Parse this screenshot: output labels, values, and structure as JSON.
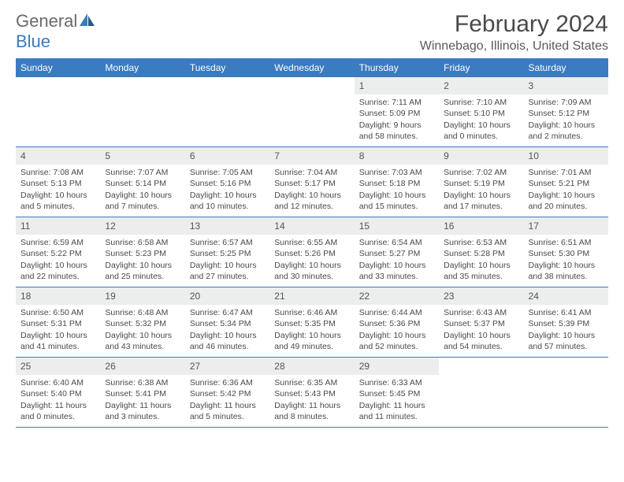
{
  "logo": {
    "text1": "General",
    "text2": "Blue"
  },
  "title": "February 2024",
  "location": "Winnebago, Illinois, United States",
  "colors": {
    "accent": "#3b7bbf",
    "dayhead_text": "#ffffff",
    "daynum_bg": "#eceded",
    "text": "#4a4a4a",
    "logo_gray": "#6a6a6a"
  },
  "day_headers": [
    "Sunday",
    "Monday",
    "Tuesday",
    "Wednesday",
    "Thursday",
    "Friday",
    "Saturday"
  ],
  "weeks": [
    [
      {
        "empty": true
      },
      {
        "empty": true
      },
      {
        "empty": true
      },
      {
        "empty": true
      },
      {
        "day": "1",
        "sunrise": "Sunrise: 7:11 AM",
        "sunset": "Sunset: 5:09 PM",
        "daylight": "Daylight: 9 hours and 58 minutes."
      },
      {
        "day": "2",
        "sunrise": "Sunrise: 7:10 AM",
        "sunset": "Sunset: 5:10 PM",
        "daylight": "Daylight: 10 hours and 0 minutes."
      },
      {
        "day": "3",
        "sunrise": "Sunrise: 7:09 AM",
        "sunset": "Sunset: 5:12 PM",
        "daylight": "Daylight: 10 hours and 2 minutes."
      }
    ],
    [
      {
        "day": "4",
        "sunrise": "Sunrise: 7:08 AM",
        "sunset": "Sunset: 5:13 PM",
        "daylight": "Daylight: 10 hours and 5 minutes."
      },
      {
        "day": "5",
        "sunrise": "Sunrise: 7:07 AM",
        "sunset": "Sunset: 5:14 PM",
        "daylight": "Daylight: 10 hours and 7 minutes."
      },
      {
        "day": "6",
        "sunrise": "Sunrise: 7:05 AM",
        "sunset": "Sunset: 5:16 PM",
        "daylight": "Daylight: 10 hours and 10 minutes."
      },
      {
        "day": "7",
        "sunrise": "Sunrise: 7:04 AM",
        "sunset": "Sunset: 5:17 PM",
        "daylight": "Daylight: 10 hours and 12 minutes."
      },
      {
        "day": "8",
        "sunrise": "Sunrise: 7:03 AM",
        "sunset": "Sunset: 5:18 PM",
        "daylight": "Daylight: 10 hours and 15 minutes."
      },
      {
        "day": "9",
        "sunrise": "Sunrise: 7:02 AM",
        "sunset": "Sunset: 5:19 PM",
        "daylight": "Daylight: 10 hours and 17 minutes."
      },
      {
        "day": "10",
        "sunrise": "Sunrise: 7:01 AM",
        "sunset": "Sunset: 5:21 PM",
        "daylight": "Daylight: 10 hours and 20 minutes."
      }
    ],
    [
      {
        "day": "11",
        "sunrise": "Sunrise: 6:59 AM",
        "sunset": "Sunset: 5:22 PM",
        "daylight": "Daylight: 10 hours and 22 minutes."
      },
      {
        "day": "12",
        "sunrise": "Sunrise: 6:58 AM",
        "sunset": "Sunset: 5:23 PM",
        "daylight": "Daylight: 10 hours and 25 minutes."
      },
      {
        "day": "13",
        "sunrise": "Sunrise: 6:57 AM",
        "sunset": "Sunset: 5:25 PM",
        "daylight": "Daylight: 10 hours and 27 minutes."
      },
      {
        "day": "14",
        "sunrise": "Sunrise: 6:55 AM",
        "sunset": "Sunset: 5:26 PM",
        "daylight": "Daylight: 10 hours and 30 minutes."
      },
      {
        "day": "15",
        "sunrise": "Sunrise: 6:54 AM",
        "sunset": "Sunset: 5:27 PM",
        "daylight": "Daylight: 10 hours and 33 minutes."
      },
      {
        "day": "16",
        "sunrise": "Sunrise: 6:53 AM",
        "sunset": "Sunset: 5:28 PM",
        "daylight": "Daylight: 10 hours and 35 minutes."
      },
      {
        "day": "17",
        "sunrise": "Sunrise: 6:51 AM",
        "sunset": "Sunset: 5:30 PM",
        "daylight": "Daylight: 10 hours and 38 minutes."
      }
    ],
    [
      {
        "day": "18",
        "sunrise": "Sunrise: 6:50 AM",
        "sunset": "Sunset: 5:31 PM",
        "daylight": "Daylight: 10 hours and 41 minutes."
      },
      {
        "day": "19",
        "sunrise": "Sunrise: 6:48 AM",
        "sunset": "Sunset: 5:32 PM",
        "daylight": "Daylight: 10 hours and 43 minutes."
      },
      {
        "day": "20",
        "sunrise": "Sunrise: 6:47 AM",
        "sunset": "Sunset: 5:34 PM",
        "daylight": "Daylight: 10 hours and 46 minutes."
      },
      {
        "day": "21",
        "sunrise": "Sunrise: 6:46 AM",
        "sunset": "Sunset: 5:35 PM",
        "daylight": "Daylight: 10 hours and 49 minutes."
      },
      {
        "day": "22",
        "sunrise": "Sunrise: 6:44 AM",
        "sunset": "Sunset: 5:36 PM",
        "daylight": "Daylight: 10 hours and 52 minutes."
      },
      {
        "day": "23",
        "sunrise": "Sunrise: 6:43 AM",
        "sunset": "Sunset: 5:37 PM",
        "daylight": "Daylight: 10 hours and 54 minutes."
      },
      {
        "day": "24",
        "sunrise": "Sunrise: 6:41 AM",
        "sunset": "Sunset: 5:39 PM",
        "daylight": "Daylight: 10 hours and 57 minutes."
      }
    ],
    [
      {
        "day": "25",
        "sunrise": "Sunrise: 6:40 AM",
        "sunset": "Sunset: 5:40 PM",
        "daylight": "Daylight: 11 hours and 0 minutes."
      },
      {
        "day": "26",
        "sunrise": "Sunrise: 6:38 AM",
        "sunset": "Sunset: 5:41 PM",
        "daylight": "Daylight: 11 hours and 3 minutes."
      },
      {
        "day": "27",
        "sunrise": "Sunrise: 6:36 AM",
        "sunset": "Sunset: 5:42 PM",
        "daylight": "Daylight: 11 hours and 5 minutes."
      },
      {
        "day": "28",
        "sunrise": "Sunrise: 6:35 AM",
        "sunset": "Sunset: 5:43 PM",
        "daylight": "Daylight: 11 hours and 8 minutes."
      },
      {
        "day": "29",
        "sunrise": "Sunrise: 6:33 AM",
        "sunset": "Sunset: 5:45 PM",
        "daylight": "Daylight: 11 hours and 11 minutes."
      },
      {
        "empty": true
      },
      {
        "empty": true
      }
    ]
  ]
}
